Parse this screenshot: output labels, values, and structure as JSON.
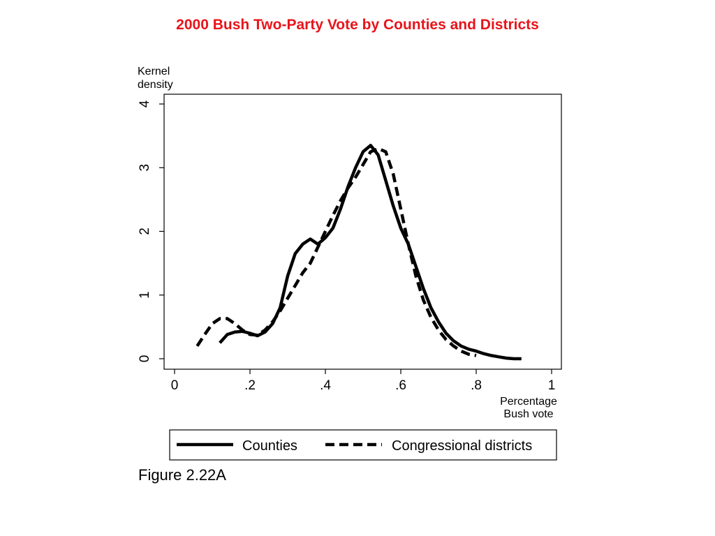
{
  "slide": {
    "title": "2000 Bush Two-Party Vote by Counties and Districts",
    "title_color": "#e8141b",
    "caption": "Figure 2.22A"
  },
  "chart_data": {
    "type": "line",
    "title": "",
    "ylabel": [
      "Kernel",
      "density"
    ],
    "xlabel": [
      "Percentage",
      "Bush vote"
    ],
    "xlim": [
      0,
      1
    ],
    "ylim": [
      0,
      4
    ],
    "x_ticks": [
      0,
      0.2,
      0.4,
      0.6,
      0.8,
      1
    ],
    "x_tick_labels": [
      "0",
      ".2",
      ".4",
      ".6",
      ".8",
      "1"
    ],
    "y_ticks": [
      0,
      1,
      2,
      3,
      4
    ],
    "y_tick_labels": [
      "0",
      "1",
      "2",
      "3",
      "4"
    ],
    "grid": false,
    "legend_position": "bottom",
    "series": [
      {
        "name": "Counties",
        "style": "solid",
        "color": "#000000",
        "points": [
          [
            0.12,
            0.25
          ],
          [
            0.14,
            0.38
          ],
          [
            0.16,
            0.42
          ],
          [
            0.18,
            0.43
          ],
          [
            0.2,
            0.4
          ],
          [
            0.22,
            0.36
          ],
          [
            0.24,
            0.42
          ],
          [
            0.26,
            0.55
          ],
          [
            0.28,
            0.8
          ],
          [
            0.3,
            1.3
          ],
          [
            0.32,
            1.65
          ],
          [
            0.34,
            1.8
          ],
          [
            0.36,
            1.88
          ],
          [
            0.38,
            1.8
          ],
          [
            0.4,
            1.9
          ],
          [
            0.42,
            2.05
          ],
          [
            0.44,
            2.35
          ],
          [
            0.46,
            2.7
          ],
          [
            0.48,
            3.0
          ],
          [
            0.5,
            3.25
          ],
          [
            0.52,
            3.35
          ],
          [
            0.54,
            3.2
          ],
          [
            0.56,
            2.8
          ],
          [
            0.58,
            2.4
          ],
          [
            0.6,
            2.05
          ],
          [
            0.62,
            1.8
          ],
          [
            0.64,
            1.45
          ],
          [
            0.66,
            1.1
          ],
          [
            0.68,
            0.8
          ],
          [
            0.7,
            0.58
          ],
          [
            0.72,
            0.4
          ],
          [
            0.74,
            0.28
          ],
          [
            0.76,
            0.2
          ],
          [
            0.78,
            0.15
          ],
          [
            0.8,
            0.12
          ],
          [
            0.82,
            0.08
          ],
          [
            0.84,
            0.05
          ],
          [
            0.86,
            0.03
          ],
          [
            0.88,
            0.01
          ],
          [
            0.9,
            0.0
          ],
          [
            0.92,
            0.0
          ]
        ]
      },
      {
        "name": "Congressional districts",
        "style": "dashed",
        "color": "#000000",
        "points": [
          [
            0.06,
            0.2
          ],
          [
            0.08,
            0.38
          ],
          [
            0.1,
            0.55
          ],
          [
            0.12,
            0.63
          ],
          [
            0.14,
            0.63
          ],
          [
            0.16,
            0.55
          ],
          [
            0.18,
            0.45
          ],
          [
            0.2,
            0.38
          ],
          [
            0.22,
            0.37
          ],
          [
            0.24,
            0.45
          ],
          [
            0.26,
            0.58
          ],
          [
            0.28,
            0.75
          ],
          [
            0.3,
            0.95
          ],
          [
            0.32,
            1.15
          ],
          [
            0.34,
            1.35
          ],
          [
            0.36,
            1.5
          ],
          [
            0.38,
            1.75
          ],
          [
            0.4,
            2.0
          ],
          [
            0.42,
            2.25
          ],
          [
            0.44,
            2.48
          ],
          [
            0.46,
            2.68
          ],
          [
            0.48,
            2.85
          ],
          [
            0.5,
            3.05
          ],
          [
            0.52,
            3.25
          ],
          [
            0.54,
            3.3
          ],
          [
            0.56,
            3.25
          ],
          [
            0.58,
            2.9
          ],
          [
            0.6,
            2.35
          ],
          [
            0.62,
            1.8
          ],
          [
            0.64,
            1.3
          ],
          [
            0.66,
            0.92
          ],
          [
            0.68,
            0.65
          ],
          [
            0.7,
            0.45
          ],
          [
            0.72,
            0.3
          ],
          [
            0.74,
            0.2
          ],
          [
            0.76,
            0.12
          ],
          [
            0.78,
            0.07
          ],
          [
            0.8,
            0.05
          ]
        ]
      }
    ]
  }
}
